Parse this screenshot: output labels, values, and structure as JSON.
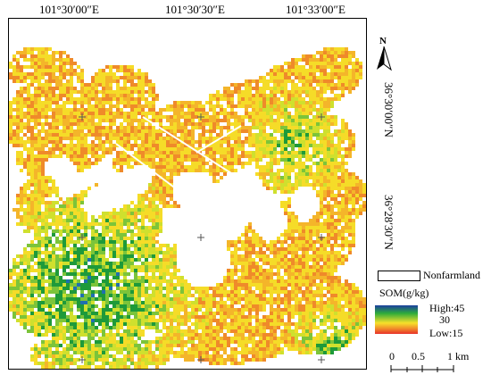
{
  "map": {
    "longitude_labels": [
      "101°30′00″E",
      "101°30′30″E",
      "101°33′00″E"
    ],
    "latitude_labels": [
      "36°30′00″N",
      "36°28′30″N"
    ],
    "north_arrow": {
      "icon": "north-arrow-icon",
      "letter": "N"
    }
  },
  "legend": {
    "nonfarmland_label": "Nonfarmland",
    "som_title": "SOM(g/kg)",
    "high_label": "High:45",
    "mid_label": "30",
    "low_label": "Low:15",
    "colors": {
      "high": "#1b3fa0",
      "green": "#2eab3a",
      "yellow": "#f7e12a",
      "orange": "#f08a2a",
      "low": "#e8302a"
    }
  },
  "scale_bar": {
    "ticks": [
      "0",
      "0.5",
      "1 km"
    ]
  }
}
